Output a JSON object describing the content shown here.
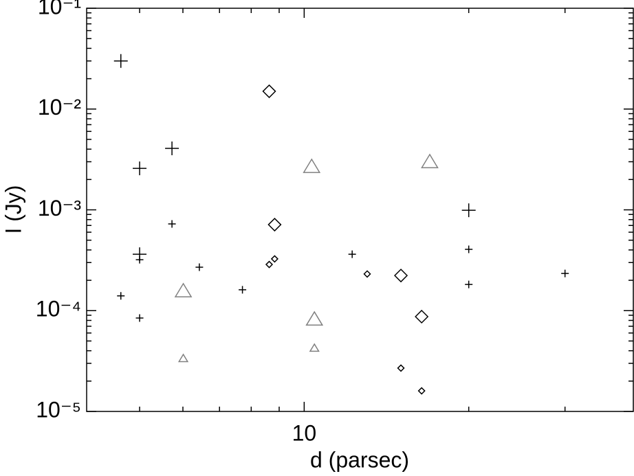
{
  "chart_data": {
    "type": "scatter",
    "xlabel": "d (parsec)",
    "ylabel": "I (Jy)",
    "xscale": "log",
    "yscale": "log",
    "xlim": [
      4,
      40
    ],
    "ylim": [
      1e-05,
      0.1
    ],
    "xticks": [
      10
    ],
    "xminorticks": [
      5,
      6,
      7,
      8,
      9,
      20,
      30
    ],
    "yticks": [
      {
        "value": 1e-05,
        "label": "10⁻⁵"
      },
      {
        "value": 0.0001,
        "label": "10⁻⁴"
      },
      {
        "value": 0.001,
        "label": "10⁻³"
      },
      {
        "value": 0.01,
        "label": "10⁻²"
      },
      {
        "value": 0.1,
        "label": "10⁻¹"
      }
    ],
    "yminorticks": [
      2e-05,
      3e-05,
      4e-05,
      5e-05,
      6e-05,
      7e-05,
      8e-05,
      9e-05,
      0.0002,
      0.0003,
      0.0004,
      0.0005,
      0.0006,
      0.0007,
      0.0008,
      0.0009,
      0.002,
      0.003,
      0.004,
      0.005,
      0.006,
      0.007,
      0.008,
      0.009,
      0.02,
      0.03,
      0.04,
      0.05,
      0.06,
      0.07,
      0.08,
      0.09
    ],
    "series": [
      {
        "marker": "plus",
        "size": "large",
        "color": "#000000",
        "x": [
          4.62,
          5.0,
          5.73,
          5.0,
          20.0
        ],
        "values": [
          0.03,
          0.00258,
          0.00407,
          0.000363,
          0.00099
        ]
      },
      {
        "marker": "plus",
        "size": "small",
        "color": "#000000",
        "x": [
          4.62,
          5.0,
          5.0,
          5.73,
          6.43,
          7.71,
          12.24,
          20.0,
          20.0,
          30.0
        ],
        "values": [
          0.00014,
          0.00032,
          8.45e-05,
          0.000725,
          0.00027,
          0.000161,
          0.000363,
          0.000406,
          0.000182,
          0.000234
        ]
      },
      {
        "marker": "diamond",
        "size": "large",
        "color": "#000000",
        "x": [
          8.63,
          8.83,
          15.03,
          16.4
        ],
        "values": [
          0.015,
          0.000713,
          0.000223,
          8.72e-05
        ]
      },
      {
        "marker": "diamond",
        "size": "small",
        "color": "#000000",
        "x": [
          8.63,
          8.83,
          13.04,
          15.03,
          16.4
        ],
        "values": [
          0.000287,
          0.000326,
          0.000231,
          2.69e-05,
          1.6e-05
        ]
      },
      {
        "marker": "triangle",
        "size": "large",
        "color": "#808080",
        "x": [
          6.01,
          10.32,
          10.44,
          16.97
        ],
        "values": [
          0.000156,
          0.00267,
          8.18e-05,
          0.00298
        ]
      },
      {
        "marker": "triangle",
        "size": "small",
        "color": "#808080",
        "x": [
          6.01,
          10.44
        ],
        "values": [
          3.35e-05,
          4.24e-05
        ]
      }
    ]
  }
}
